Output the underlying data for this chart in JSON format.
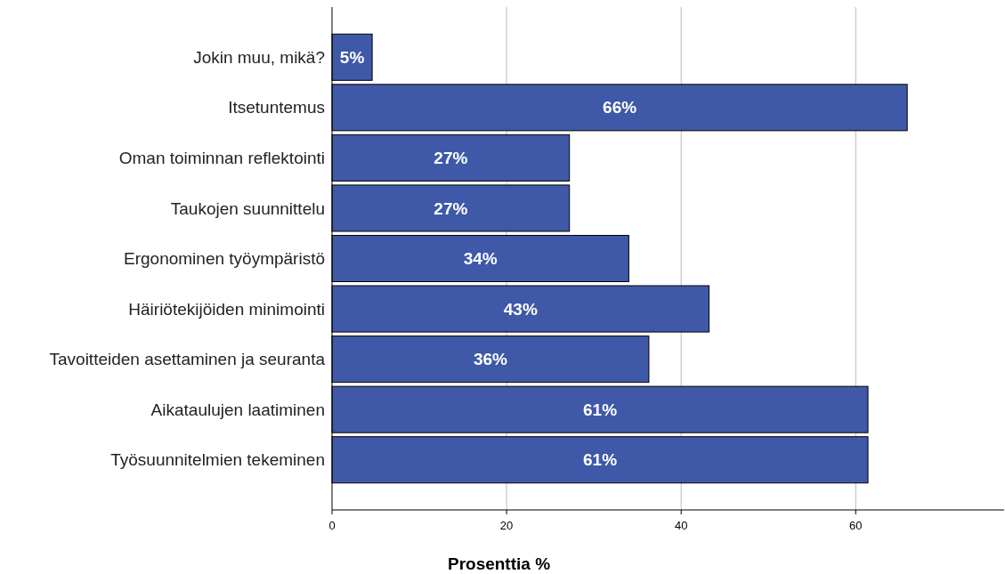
{
  "chart_data": {
    "type": "bar",
    "orientation": "horizontal",
    "xlabel": "Prosenttia %",
    "categories": [
      "Jokin muu, mikä?",
      "Itsetuntemus",
      "Oman toiminnan reflektointi",
      "Taukojen suunnittelu",
      "Ergonominen työympäristö",
      "Häiriötekijöiden minimointi",
      "Tavoitteiden asettaminen ja seuranta",
      "Aikataulujen laatiminen",
      "Työsuunnitelmien tekeminen"
    ],
    "values": [
      4.6,
      65.9,
      27.2,
      27.2,
      34.0,
      43.2,
      36.3,
      61.4,
      61.4
    ],
    "value_labels": [
      "5%",
      "66%",
      "27%",
      "27%",
      "34%",
      "43%",
      "36%",
      "61%",
      "61%"
    ],
    "color": "#3f59a8",
    "xlim": [
      0,
      77
    ],
    "xticks": [
      0,
      20,
      40,
      60
    ],
    "grid": "x"
  }
}
